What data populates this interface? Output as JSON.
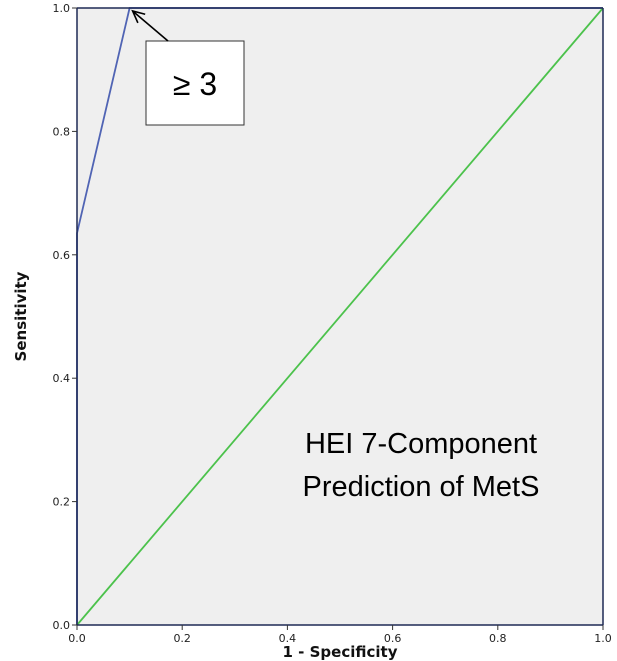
{
  "chart_data": {
    "type": "line",
    "xlabel": "1 - Specificity",
    "ylabel": "Sensitivity",
    "xlim": [
      0.0,
      1.0
    ],
    "ylim": [
      0.0,
      1.0
    ],
    "x_ticks": [
      "0.0",
      "0.2",
      "0.4",
      "0.6",
      "0.8",
      "1.0"
    ],
    "y_ticks": [
      "0.0",
      "0.2",
      "0.4",
      "0.6",
      "0.8",
      "1.0"
    ],
    "grid": false,
    "background": "#efefef",
    "series": [
      {
        "color": "#5064b4",
        "points": [
          [
            0.0,
            0.0
          ],
          [
            0.0,
            0.635
          ],
          [
            0.1,
            1.0
          ],
          [
            1.0,
            1.0
          ]
        ]
      },
      {
        "color": "#4cc24c",
        "points": [
          [
            0.0,
            0.0
          ],
          [
            1.0,
            1.0
          ]
        ]
      }
    ],
    "annotations": {
      "threshold_label": "≥ 3",
      "arrow_target": [
        0.1,
        1.0
      ],
      "title_lines": [
        "HEI 7-Component",
        "Prediction of MetS"
      ]
    }
  }
}
